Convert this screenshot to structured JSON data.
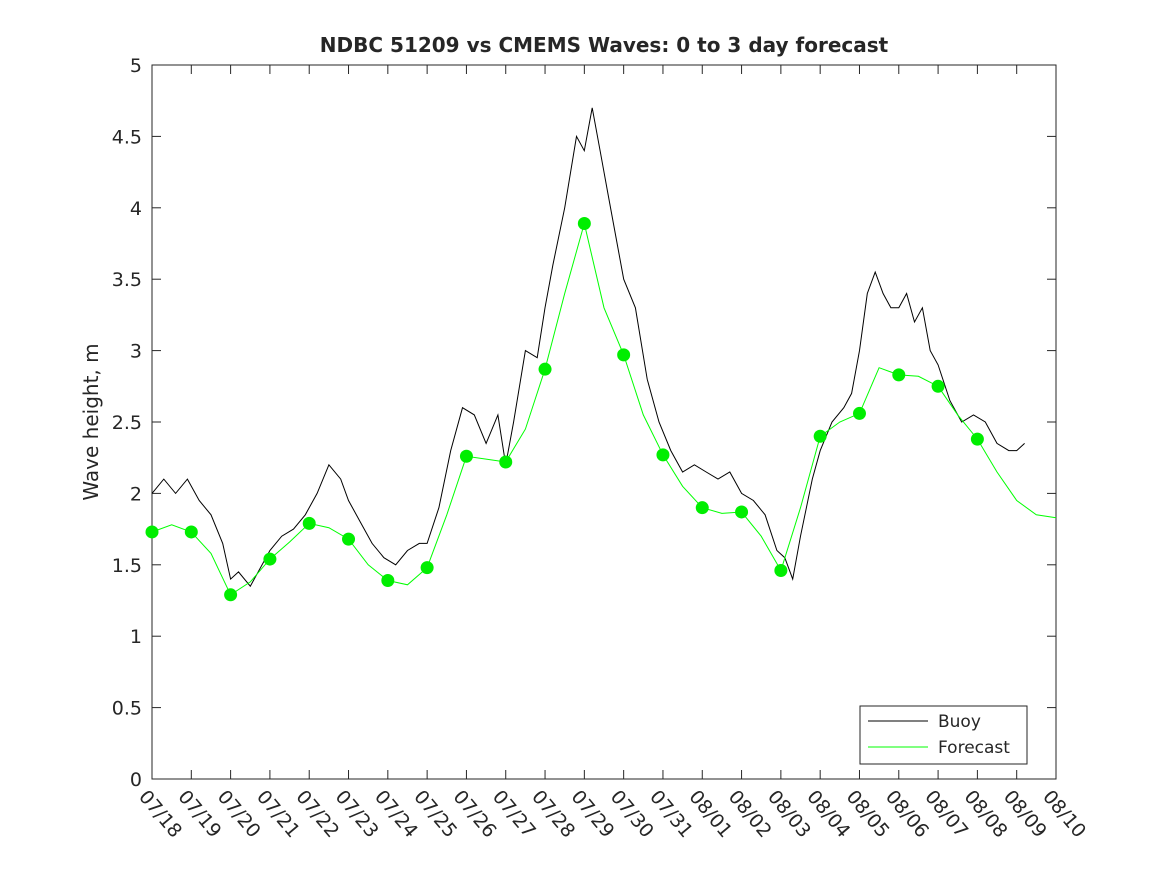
{
  "chart_data": {
    "type": "line",
    "title": "NDBC 51209 vs CMEMS Waves: 0 to 3 day forecast",
    "xlabel": "",
    "ylabel": "Wave height, m",
    "x_tick_labels": [
      "07/18",
      "07/19",
      "07/20",
      "07/21",
      "07/22",
      "07/23",
      "07/24",
      "07/25",
      "07/26",
      "07/27",
      "07/28",
      "07/29",
      "07/30",
      "07/31",
      "08/01",
      "08/02",
      "08/03",
      "08/04",
      "08/05",
      "08/06",
      "08/07",
      "08/08",
      "08/09",
      "08/10"
    ],
    "x_unit": "days since 07/18 00:00 (x = 0 is 07/18, x = 23 is 08/10)",
    "xlim": [
      0,
      23
    ],
    "ylim": [
      0,
      5
    ],
    "y_ticks": [
      0,
      0.5,
      1,
      1.5,
      2,
      2.5,
      3,
      3.5,
      4,
      4.5,
      5
    ],
    "grid": false,
    "legend": {
      "placement": "bottom-right",
      "entries": [
        {
          "label": "Buoy",
          "color": "#000000"
        },
        {
          "label": "Forecast",
          "color": "#00ff00"
        }
      ]
    },
    "series": [
      {
        "name": "Buoy",
        "color": "#000000",
        "points": [
          [
            0,
            2.0
          ],
          [
            0.3,
            2.1
          ],
          [
            0.6,
            2.0
          ],
          [
            0.9,
            2.1
          ],
          [
            1.2,
            1.95
          ],
          [
            1.5,
            1.85
          ],
          [
            1.8,
            1.65
          ],
          [
            2.0,
            1.4
          ],
          [
            2.2,
            1.45
          ],
          [
            2.5,
            1.35
          ],
          [
            2.8,
            1.5
          ],
          [
            3.0,
            1.6
          ],
          [
            3.3,
            1.7
          ],
          [
            3.6,
            1.75
          ],
          [
            3.9,
            1.85
          ],
          [
            4.2,
            2.0
          ],
          [
            4.5,
            2.2
          ],
          [
            4.8,
            2.1
          ],
          [
            5.0,
            1.95
          ],
          [
            5.3,
            1.8
          ],
          [
            5.6,
            1.65
          ],
          [
            5.9,
            1.55
          ],
          [
            6.2,
            1.5
          ],
          [
            6.5,
            1.6
          ],
          [
            6.8,
            1.65
          ],
          [
            7.0,
            1.65
          ],
          [
            7.3,
            1.9
          ],
          [
            7.6,
            2.3
          ],
          [
            7.9,
            2.6
          ],
          [
            8.2,
            2.55
          ],
          [
            8.5,
            2.35
          ],
          [
            8.8,
            2.55
          ],
          [
            9.0,
            2.2
          ],
          [
            9.2,
            2.5
          ],
          [
            9.5,
            3.0
          ],
          [
            9.8,
            2.95
          ],
          [
            10.0,
            3.3
          ],
          [
            10.2,
            3.6
          ],
          [
            10.5,
            4.0
          ],
          [
            10.8,
            4.5
          ],
          [
            11.0,
            4.4
          ],
          [
            11.2,
            4.7
          ],
          [
            11.4,
            4.4
          ],
          [
            11.6,
            4.1
          ],
          [
            11.8,
            3.8
          ],
          [
            12.0,
            3.5
          ],
          [
            12.3,
            3.3
          ],
          [
            12.6,
            2.8
          ],
          [
            12.9,
            2.5
          ],
          [
            13.2,
            2.3
          ],
          [
            13.5,
            2.15
          ],
          [
            13.8,
            2.2
          ],
          [
            14.1,
            2.15
          ],
          [
            14.4,
            2.1
          ],
          [
            14.7,
            2.15
          ],
          [
            15.0,
            2.0
          ],
          [
            15.3,
            1.95
          ],
          [
            15.6,
            1.85
          ],
          [
            15.9,
            1.6
          ],
          [
            16.1,
            1.55
          ],
          [
            16.3,
            1.4
          ],
          [
            16.5,
            1.7
          ],
          [
            16.8,
            2.1
          ],
          [
            17.0,
            2.3
          ],
          [
            17.3,
            2.5
          ],
          [
            17.6,
            2.6
          ],
          [
            17.8,
            2.7
          ],
          [
            18.0,
            3.0
          ],
          [
            18.2,
            3.4
          ],
          [
            18.4,
            3.55
          ],
          [
            18.6,
            3.4
          ],
          [
            18.8,
            3.3
          ],
          [
            19.0,
            3.3
          ],
          [
            19.2,
            3.4
          ],
          [
            19.4,
            3.2
          ],
          [
            19.6,
            3.3
          ],
          [
            19.8,
            3.0
          ],
          [
            20.0,
            2.9
          ],
          [
            20.3,
            2.65
          ],
          [
            20.6,
            2.5
          ],
          [
            20.9,
            2.55
          ],
          [
            21.2,
            2.5
          ],
          [
            21.5,
            2.35
          ],
          [
            21.8,
            2.3
          ],
          [
            22.0,
            2.3
          ],
          [
            22.2,
            2.35
          ]
        ]
      },
      {
        "name": "Forecast",
        "color": "#00ff00",
        "points": [
          [
            0,
            1.73
          ],
          [
            0.5,
            1.78
          ],
          [
            1,
            1.73
          ],
          [
            1.5,
            1.58
          ],
          [
            2,
            1.29
          ],
          [
            2.5,
            1.38
          ],
          [
            3,
            1.54
          ],
          [
            3.5,
            1.66
          ],
          [
            4,
            1.79
          ],
          [
            4.5,
            1.76
          ],
          [
            5,
            1.68
          ],
          [
            5.5,
            1.5
          ],
          [
            6,
            1.39
          ],
          [
            6.5,
            1.36
          ],
          [
            7,
            1.48
          ],
          [
            7.5,
            1.85
          ],
          [
            8,
            2.26
          ],
          [
            8.5,
            2.24
          ],
          [
            9,
            2.22
          ],
          [
            9.5,
            2.45
          ],
          [
            10,
            2.87
          ],
          [
            10.5,
            3.4
          ],
          [
            11,
            3.89
          ],
          [
            11.5,
            3.3
          ],
          [
            12,
            2.97
          ],
          [
            12.5,
            2.55
          ],
          [
            13,
            2.27
          ],
          [
            13.5,
            2.05
          ],
          [
            14,
            1.9
          ],
          [
            14.5,
            1.86
          ],
          [
            15,
            1.87
          ],
          [
            15.5,
            1.7
          ],
          [
            16,
            1.46
          ],
          [
            16.5,
            1.9
          ],
          [
            17,
            2.4
          ],
          [
            17.5,
            2.5
          ],
          [
            18,
            2.56
          ],
          [
            18.5,
            2.88
          ],
          [
            19,
            2.83
          ],
          [
            19.5,
            2.82
          ],
          [
            20,
            2.75
          ],
          [
            20.5,
            2.55
          ],
          [
            21,
            2.38
          ],
          [
            21.5,
            2.15
          ],
          [
            22,
            1.95
          ],
          [
            22.5,
            1.85
          ],
          [
            23,
            1.83
          ]
        ]
      }
    ],
    "forecast_markers": [
      [
        0,
        1.73
      ],
      [
        1,
        1.73
      ],
      [
        2,
        1.29
      ],
      [
        3,
        1.54
      ],
      [
        4,
        1.79
      ],
      [
        5,
        1.68
      ],
      [
        6,
        1.39
      ],
      [
        7,
        1.48
      ],
      [
        8,
        2.26
      ],
      [
        9,
        2.22
      ],
      [
        10,
        2.87
      ],
      [
        11,
        3.89
      ],
      [
        12,
        2.97
      ],
      [
        13,
        2.27
      ],
      [
        14,
        1.9
      ],
      [
        15,
        1.87
      ],
      [
        16,
        1.46
      ],
      [
        17,
        2.4
      ],
      [
        18,
        2.56
      ],
      [
        19,
        2.83
      ],
      [
        20,
        2.75
      ],
      [
        21,
        2.38
      ]
    ]
  }
}
